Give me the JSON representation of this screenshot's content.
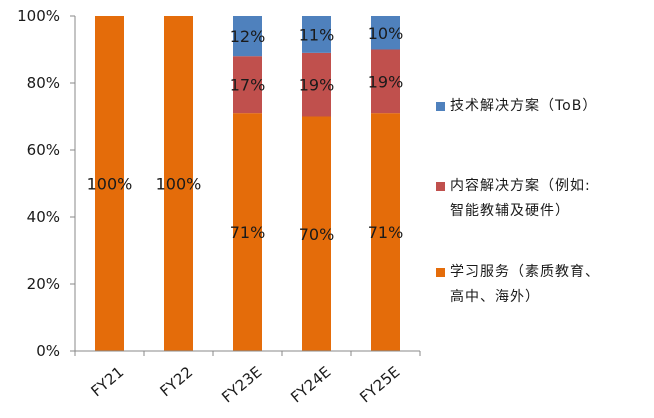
{
  "chart_data": {
    "type": "bar",
    "stacked": true,
    "categories": [
      "FY21",
      "FY22",
      "FY23E",
      "FY24E",
      "FY25E"
    ],
    "series": [
      {
        "name": "学习服务（素质教育、高中、海外）",
        "color": "#E46C0A",
        "values": [
          100,
          100,
          71,
          70,
          71
        ],
        "labels": [
          "100%",
          "100%",
          "71%",
          "70%",
          "71%"
        ]
      },
      {
        "name": "内容解决方案（例如:智能教辅及硬件）",
        "color": "#C0504D",
        "values": [
          0,
          0,
          17,
          19,
          19
        ],
        "labels": [
          "",
          "",
          "17%",
          "19%",
          "19%"
        ]
      },
      {
        "name": "技术解决方案（ToB）",
        "color": "#4F81BD",
        "values": [
          0,
          0,
          12,
          11,
          10
        ],
        "labels": [
          "",
          "",
          "12%",
          "11%",
          "10%"
        ]
      }
    ],
    "ylim": [
      0,
      100
    ],
    "yticks": [
      {
        "value": 0,
        "label": "0%"
      },
      {
        "value": 20,
        "label": "20%"
      },
      {
        "value": 40,
        "label": "40%"
      },
      {
        "value": 60,
        "label": "60%"
      },
      {
        "value": 80,
        "label": "80%"
      },
      {
        "value": 100,
        "label": "100%"
      }
    ],
    "grid": false,
    "legend_position": "right"
  },
  "legend": {
    "items": [
      {
        "label": "技术解决方案（ToB）",
        "color": "#4F81BD"
      },
      {
        "label": "内容解决方案（例如:\n智能教辅及硬件）",
        "color": "#C0504D"
      },
      {
        "label": "学习服务（素质教育、\n高中、海外）",
        "color": "#E46C0A"
      }
    ]
  }
}
